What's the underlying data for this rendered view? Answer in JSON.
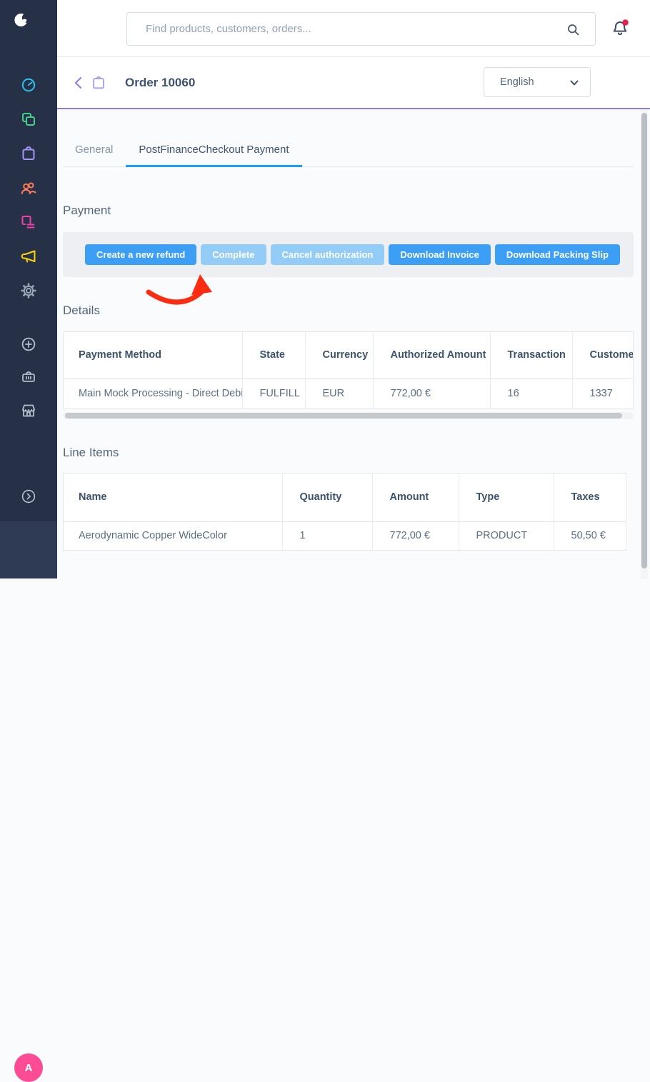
{
  "topbar": {
    "search_placeholder": "Find products, customers, orders...",
    "search_value": ""
  },
  "sidebar": {
    "logo": "shopware-logo",
    "nav_items": [
      {
        "icon": "dashboard-icon"
      },
      {
        "icon": "catalogues-icon"
      },
      {
        "icon": "orders-icon"
      },
      {
        "icon": "customers-icon"
      },
      {
        "icon": "content-icon"
      },
      {
        "icon": "marketing-icon"
      },
      {
        "icon": "settings-icon"
      },
      {
        "icon": "extensions-plus-icon"
      },
      {
        "icon": "basket-icon"
      },
      {
        "icon": "storefront-icon"
      },
      {
        "icon": "expand-chevron-icon"
      }
    ],
    "avatar_initial": "A"
  },
  "smartbar": {
    "title": "Order 10060",
    "language_selected": "English"
  },
  "tabs": [
    {
      "label": "General",
      "active": false
    },
    {
      "label": "PostFinanceCheckout Payment",
      "active": true
    }
  ],
  "payment": {
    "heading": "Payment",
    "buttons": [
      {
        "label": "Create a new refund",
        "enabled": true
      },
      {
        "label": "Complete",
        "enabled": false
      },
      {
        "label": "Cancel authorization",
        "enabled": false
      },
      {
        "label": "Download Invoice",
        "enabled": true
      },
      {
        "label": "Download Packing Slip",
        "enabled": true
      }
    ],
    "annotation": "red-arrow pointing at Complete button"
  },
  "details": {
    "heading": "Details",
    "columns": [
      "Payment Method",
      "State",
      "Currency",
      "Authorized Amount",
      "Transaction",
      "Customer"
    ],
    "rows": [
      [
        "Main Mock Processing - Direct Debit",
        "FULFILL",
        "EUR",
        "772,00 €",
        "16",
        "1337"
      ]
    ]
  },
  "line_items": {
    "heading": "Line Items",
    "columns": [
      "Name",
      "Quantity",
      "Amount",
      "Type",
      "Taxes"
    ],
    "rows": [
      [
        "Aerodynamic Copper WideColor",
        "1",
        "772,00 €",
        "PRODUCT",
        "50,50 €"
      ]
    ]
  },
  "colors": {
    "sidebar_bg": "#263148",
    "sidebar_bottom_bg": "#2f3b54",
    "accent_purple": "#8c7ef2",
    "accent_blue": "#189eff",
    "button_blue": "#3d9ef5",
    "button_blue_disabled": "#93ccf6",
    "arrow_red": "#fb2c12",
    "avatar_pink": "#fc4c96",
    "notification_red": "#e0234e",
    "icon_dashboard": "#2fc1ee",
    "icon_catalogues": "#43d08d",
    "icon_orders": "#a695f8",
    "icon_customers": "#ff7a59",
    "icon_content": "#f23fa9",
    "icon_marketing": "#ffd400",
    "icon_settings": "#97a5b6",
    "icon_muted": "#b3bfce"
  }
}
